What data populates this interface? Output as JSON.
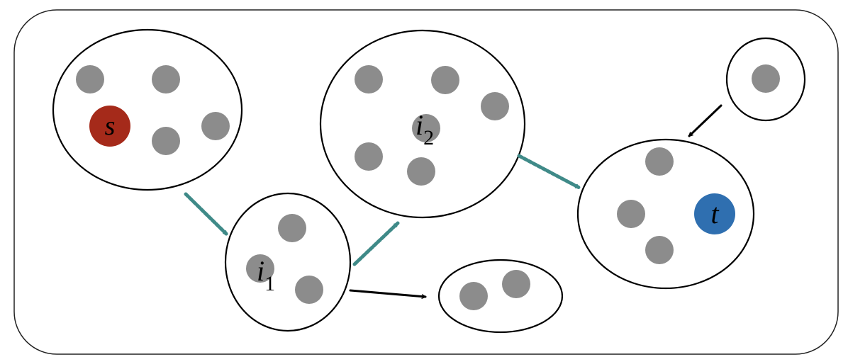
{
  "colors": {
    "node": "#8c8c8c",
    "source": "#a52a1a",
    "target": "#2f6fb0",
    "teal_arrow": "#3f8a88",
    "black_arrow": "#000000"
  },
  "labels": {
    "source": "s",
    "target": "t",
    "i1_base": "i",
    "i1_sub": "1",
    "i2_base": "i",
    "i2_sub": "2"
  }
}
